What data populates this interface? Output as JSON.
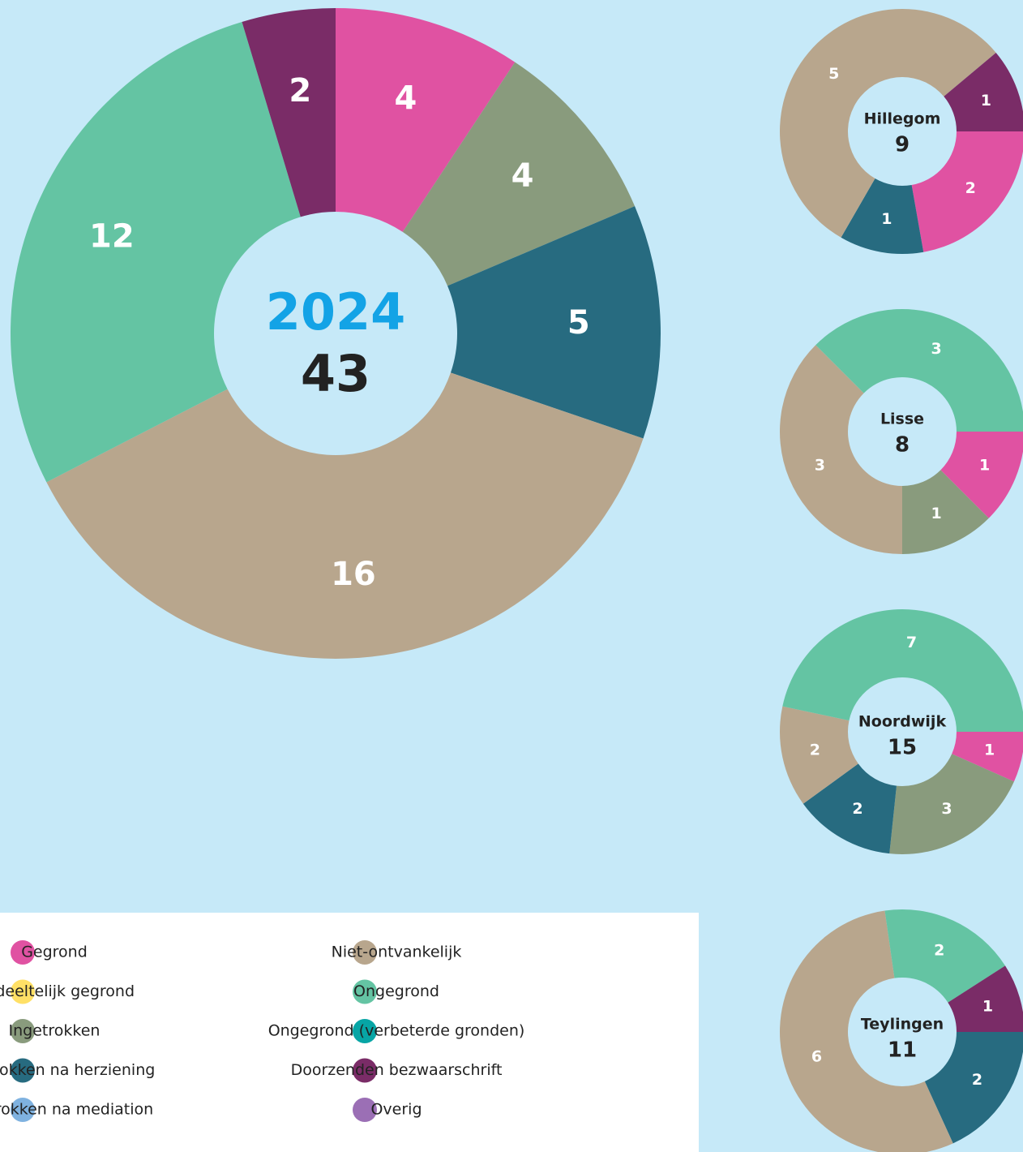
{
  "legend": [
    {
      "name": "Gegrond",
      "color": "#e052a2"
    },
    {
      "name": "Gedeeltelijk gegrond",
      "color": "#ffe066"
    },
    {
      "name": "Ingetrokken",
      "color": "#899b7d"
    },
    {
      "name": "Ingetrokken na herziening",
      "color": "#276b80"
    },
    {
      "name": "Ingetrokken na mediation",
      "color": "#7fb2e0"
    },
    {
      "name": "Niet-ontvankelijk",
      "color": "#b8a68d"
    },
    {
      "name": "Ongegrond",
      "color": "#64c4a3"
    },
    {
      "name": "Ongegrond (verbeterde gronden)",
      "color": "#07a5a5"
    },
    {
      "name": "Doorzenden bezwaarschrift",
      "color": "#7a2c67"
    },
    {
      "name": "Overig",
      "color": "#9b6fb5"
    }
  ],
  "chart_data": [
    {
      "type": "pie",
      "title": "2024",
      "total": 43,
      "categories": [
        "Gegrond",
        "Ingetrokken",
        "Ingetrokken na herziening",
        "Niet-ontvankelijk",
        "Ongegrond",
        "Doorzenden bezwaarschrift"
      ],
      "values": [
        4,
        4,
        5,
        16,
        12,
        2
      ]
    },
    {
      "type": "pie",
      "title": "Hillegom",
      "total": 9,
      "categories": [
        "Gegrond",
        "Ingetrokken na herziening",
        "Niet-ontvankelijk",
        "Doorzenden bezwaarschrift"
      ],
      "values": [
        2,
        1,
        5,
        1
      ]
    },
    {
      "type": "pie",
      "title": "Lisse",
      "total": 8,
      "categories": [
        "Gegrond",
        "Ingetrokken",
        "Niet-ontvankelijk",
        "Ongegrond"
      ],
      "values": [
        1,
        1,
        3,
        3
      ]
    },
    {
      "type": "pie",
      "title": "Noordwijk",
      "total": 15,
      "categories": [
        "Gegrond",
        "Ingetrokken",
        "Ingetrokken na herziening",
        "Niet-ontvankelijk",
        "Ongegrond"
      ],
      "values": [
        1,
        3,
        2,
        2,
        7
      ]
    },
    {
      "type": "pie",
      "title": "Teylingen",
      "total": 11,
      "categories": [
        "Ingetrokken na herziening",
        "Niet-ontvankelijk",
        "Ongegrond",
        "Doorzenden bezwaarschrift"
      ],
      "values": [
        2,
        6,
        2,
        1
      ]
    }
  ]
}
